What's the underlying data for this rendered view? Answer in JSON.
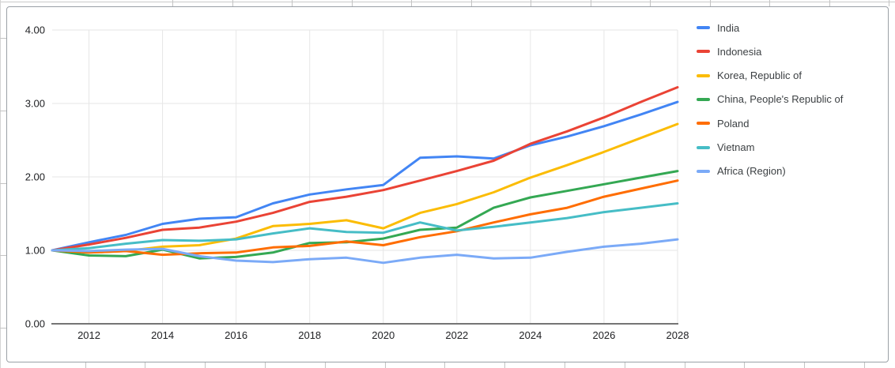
{
  "chart_data": {
    "type": "line",
    "title": "",
    "xlabel": "",
    "ylabel": "",
    "x": [
      2011,
      2012,
      2013,
      2014,
      2015,
      2016,
      2017,
      2018,
      2019,
      2020,
      2021,
      2022,
      2023,
      2024,
      2025,
      2026,
      2027,
      2028
    ],
    "series": [
      {
        "name": "India",
        "color": "#4285F4",
        "values": [
          1.0,
          1.11,
          1.21,
          1.36,
          1.43,
          1.45,
          1.64,
          1.76,
          1.83,
          1.89,
          2.26,
          2.28,
          2.25,
          2.43,
          2.55,
          2.69,
          2.85,
          3.02
        ]
      },
      {
        "name": "Indonesia",
        "color": "#EA4335",
        "values": [
          1.0,
          1.08,
          1.17,
          1.28,
          1.31,
          1.39,
          1.51,
          1.66,
          1.73,
          1.82,
          1.95,
          2.08,
          2.22,
          2.45,
          2.62,
          2.81,
          3.02,
          3.22
        ]
      },
      {
        "name": "Korea, Republic of",
        "color": "#FBBC04",
        "values": [
          1.0,
          0.97,
          0.99,
          1.05,
          1.07,
          1.16,
          1.33,
          1.36,
          1.41,
          1.3,
          1.51,
          1.63,
          1.79,
          1.99,
          2.16,
          2.34,
          2.53,
          2.72
        ]
      },
      {
        "name": "China, People's Republic of",
        "color": "#34A853",
        "values": [
          1.0,
          0.93,
          0.92,
          1.01,
          0.89,
          0.91,
          0.97,
          1.1,
          1.11,
          1.16,
          1.28,
          1.31,
          1.58,
          1.72,
          1.81,
          1.9,
          1.99,
          2.08
        ]
      },
      {
        "name": "Poland",
        "color": "#FF6D01",
        "values": [
          1.0,
          0.97,
          0.99,
          0.94,
          0.96,
          0.97,
          1.04,
          1.06,
          1.12,
          1.07,
          1.18,
          1.26,
          1.38,
          1.49,
          1.58,
          1.73,
          1.84,
          1.95
        ]
      },
      {
        "name": "Vietnam",
        "color": "#46BDC6",
        "values": [
          1.0,
          1.03,
          1.09,
          1.14,
          1.13,
          1.15,
          1.23,
          1.3,
          1.25,
          1.24,
          1.38,
          1.27,
          1.32,
          1.38,
          1.44,
          1.52,
          1.58,
          1.64
        ]
      },
      {
        "name": "Africa (Region)",
        "color": "#7BAAF7",
        "values": [
          1.0,
          0.99,
          1.01,
          1.02,
          0.92,
          0.86,
          0.84,
          0.88,
          0.9,
          0.83,
          0.9,
          0.94,
          0.89,
          0.9,
          0.98,
          1.05,
          1.09,
          1.15
        ]
      }
    ],
    "ylim": [
      0,
      4
    ],
    "yticks": [
      0,
      1,
      2,
      3,
      4
    ],
    "ytick_labels": [
      "0.00",
      "1.00",
      "2.00",
      "3.00",
      "4.00"
    ],
    "xlim": [
      2011,
      2028
    ],
    "xticks": [
      2012,
      2014,
      2016,
      2018,
      2020,
      2022,
      2024,
      2026,
      2028
    ],
    "xtick_labels": [
      "2012",
      "2014",
      "2016",
      "2018",
      "2020",
      "2022",
      "2024",
      "2026",
      "2028"
    ],
    "grid": true,
    "legend_position": "right",
    "colors": {
      "gridline": "#e6e6e6",
      "axis_line": "#757575",
      "axis_text": "#202124",
      "legend_text": "#3c4043",
      "chart_border": "#9aa0a6"
    }
  }
}
